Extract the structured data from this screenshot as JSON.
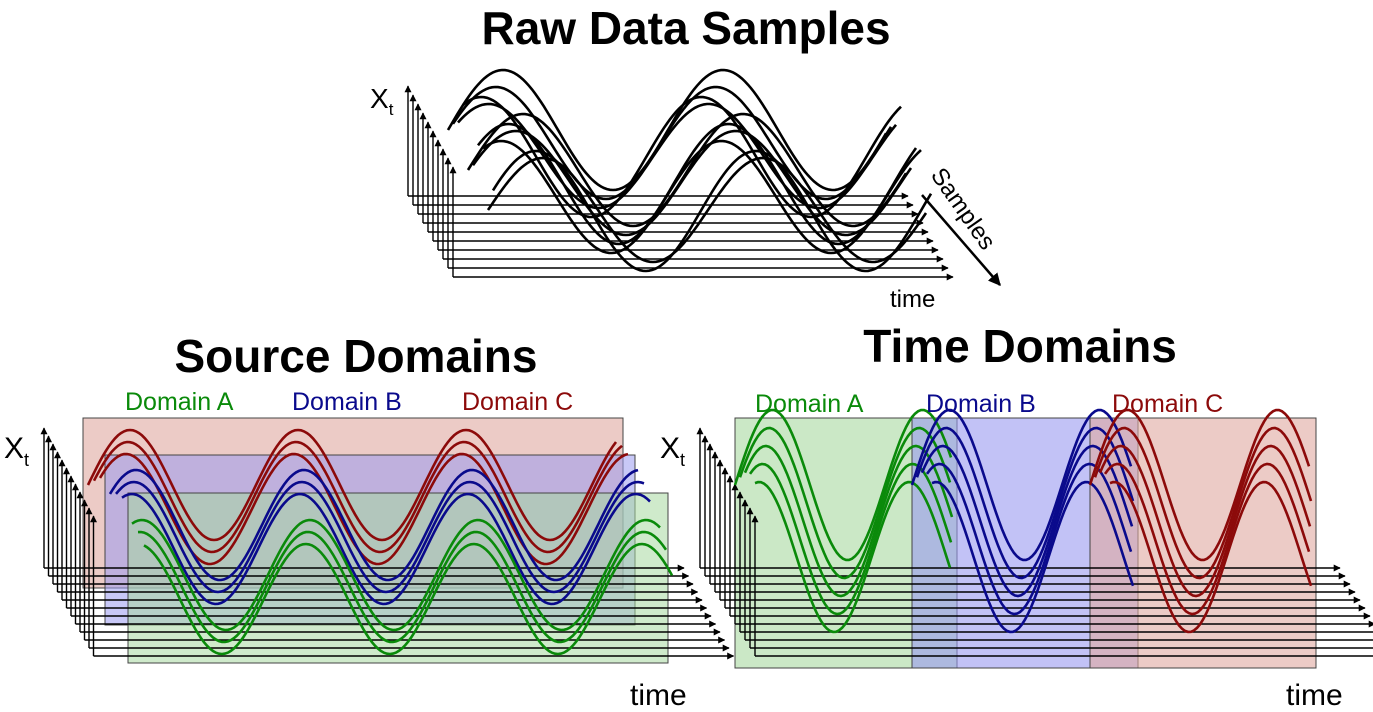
{
  "titles": {
    "raw": "Raw Data Samples",
    "source": "Source Domains",
    "time": "Time Domains"
  },
  "axis_labels": {
    "x": "X",
    "x_sub": "t",
    "time": "time",
    "samples": "Samples"
  },
  "domains": [
    {
      "label": "Domain A",
      "color": "#0a8a0a",
      "fill": "#a8d8a0"
    },
    {
      "label": "Domain B",
      "color": "#0a0a8c",
      "fill": "#9a9af0"
    },
    {
      "label": "Domain C",
      "color": "#8c0a0a",
      "fill": "#e0a8a0"
    }
  ],
  "colors": {
    "raw": "#000000"
  }
}
